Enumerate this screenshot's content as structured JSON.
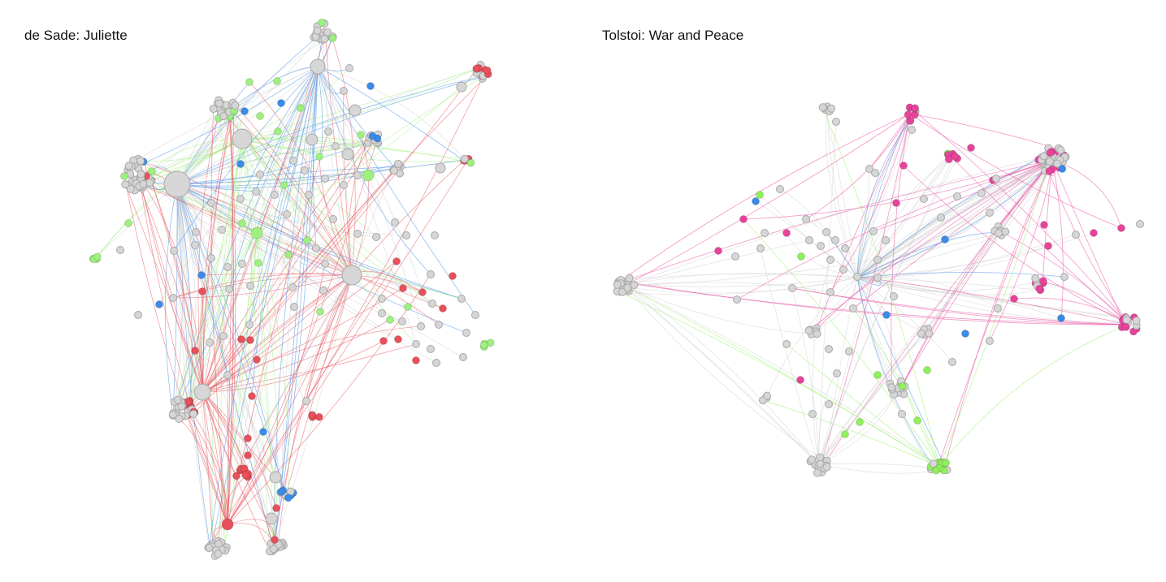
{
  "panels": [
    {
      "title": "de Sade: Juliette"
    },
    {
      "title": "Tolstoi: War and Peace"
    }
  ],
  "colors": {
    "node_default": "#d6d6d6",
    "node_stroke": "#a8a8a8",
    "edge_default": "#cfcfcf",
    "red": "#e8505b",
    "green": "#9ef07f",
    "blue": "#3b8be8",
    "pink": "#e8439a",
    "lime": "#8ef05a"
  }
}
